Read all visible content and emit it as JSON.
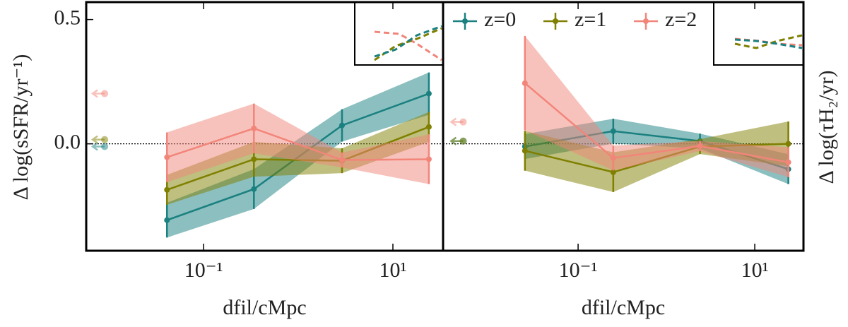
{
  "chart_data": [
    {
      "type": "line",
      "log_x": true,
      "xlim": [
        0.00575,
        33.9
      ],
      "ylim": [
        -0.43,
        0.57
      ],
      "xticks": [
        {
          "value": 0.1,
          "label": "10⁻¹"
        },
        {
          "value": 10,
          "label": "10¹"
        }
      ],
      "yticks": [
        {
          "value": 0,
          "label": "0.0"
        },
        0.5
      ],
      "xlabel": "dfil/cMpc",
      "ylabel": "Δ log(sSFR/yr⁻¹)",
      "ylabel_position": "left",
      "hline": 0,
      "ref_x": 0.009,
      "x": [
        0.041,
        0.34,
        2.9,
        24
      ],
      "series": [
        {
          "name": "z=0",
          "color": "#1a8080",
          "values": [
            -0.307,
            -0.182,
            0.074,
            0.202
          ],
          "errors": [
            0.07,
            0.08,
            0.065,
            0.085
          ],
          "ref_value": -0.011
        },
        {
          "name": "z=1",
          "color": "#7f7f00",
          "values": [
            -0.185,
            -0.062,
            -0.068,
            0.068
          ],
          "errors": [
            0.06,
            0.07,
            0.05,
            0.06
          ],
          "ref_value": 0.017
        },
        {
          "name": "z=2",
          "color": "#f2857a",
          "values": [
            -0.054,
            0.062,
            -0.065,
            -0.062
          ],
          "errors": [
            0.1,
            0.1,
            0.03,
            0.1
          ],
          "ref_value": 0.202
        }
      ]
    },
    {
      "type": "line",
      "log_x": true,
      "xlim": [
        0.00296,
        35.6
      ],
      "ylim": [
        -0.43,
        0.57
      ],
      "xticks": [
        {
          "value": 0.1,
          "label": "10⁻¹"
        },
        {
          "value": 10,
          "label": "10¹"
        }
      ],
      "xlabel": "dfil/cMpc",
      "ylabel": "Δ log(τH₂/yr)",
      "ylabel_position": "right",
      "hline": 0,
      "ref_x": 0.005,
      "legend": "upper left",
      "x": [
        0.025,
        0.25,
        2.4,
        24
      ],
      "series": [
        {
          "name": "z=0",
          "color": "#1a8080",
          "values": [
            -0.011,
            0.051,
            0.011,
            -0.102
          ],
          "errors": [
            0.05,
            0.05,
            0.03,
            0.06
          ],
          "ref_value": 0.011
        },
        {
          "name": "z=1",
          "color": "#7f7f00",
          "values": [
            -0.028,
            -0.114,
            -0.011,
            0.0
          ],
          "errors": [
            0.08,
            0.08,
            0.03,
            0.09
          ],
          "ref_value": 0.011
        },
        {
          "name": "z=2",
          "color": "#f2857a",
          "values": [
            0.244,
            -0.057,
            -0.009,
            -0.074
          ],
          "errors": [
            0.19,
            0.05,
            0.02,
            0.06
          ],
          "ref_value": 0.088
        }
      ]
    }
  ]
}
